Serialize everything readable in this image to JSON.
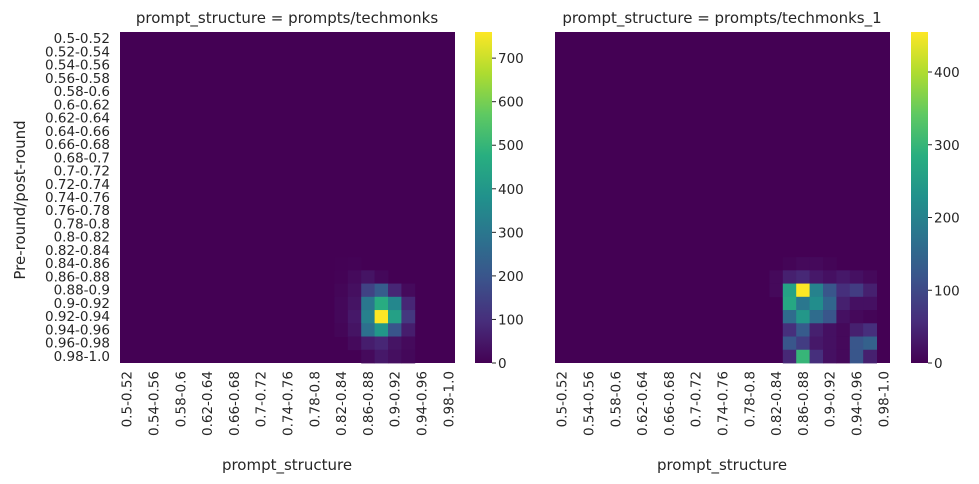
{
  "chart_data": [
    {
      "type": "heatmap",
      "title": "prompt_structure = prompts/techmonks",
      "xlabel": "prompt_structure",
      "ylabel": "Pre-round/post-round",
      "row_labels": [
        "0.5-0.52",
        "0.52-0.54",
        "0.54-0.56",
        "0.56-0.58",
        "0.58-0.6",
        "0.6-0.62",
        "0.62-0.64",
        "0.64-0.66",
        "0.66-0.68",
        "0.68-0.7",
        "0.7-0.72",
        "0.72-0.74",
        "0.74-0.76",
        "0.76-0.78",
        "0.78-0.8",
        "0.8-0.82",
        "0.82-0.84",
        "0.84-0.86",
        "0.86-0.88",
        "0.88-0.9",
        "0.9-0.92",
        "0.92-0.94",
        "0.94-0.96",
        "0.96-0.98",
        "0.98-1.0"
      ],
      "col_labels": [
        "0.5-0.52",
        "0.54-0.56",
        "0.58-0.6",
        "0.62-0.64",
        "0.66-0.68",
        "0.7-0.72",
        "0.74-0.76",
        "0.78-0.8",
        "0.82-0.84",
        "0.86-0.88",
        "0.9-0.92",
        "0.94-0.96",
        "0.98-1.0"
      ],
      "colorbar_ticks": [
        0,
        100,
        200,
        300,
        400,
        500,
        600,
        700
      ],
      "vmin": 0,
      "vmax": 760,
      "colormap": "viridis",
      "cells": [
        [
          17,
          0,
          2
        ],
        [
          17,
          1,
          5
        ],
        [
          18,
          0,
          4
        ],
        [
          18,
          1,
          20
        ],
        [
          18,
          2,
          40
        ],
        [
          18,
          3,
          15
        ],
        [
          19,
          0,
          10
        ],
        [
          19,
          1,
          30
        ],
        [
          19,
          2,
          150
        ],
        [
          19,
          3,
          220
        ],
        [
          19,
          4,
          80
        ],
        [
          19,
          5,
          20
        ],
        [
          20,
          0,
          15
        ],
        [
          20,
          1,
          40
        ],
        [
          20,
          2,
          300
        ],
        [
          20,
          3,
          470
        ],
        [
          20,
          4,
          350
        ],
        [
          20,
          5,
          80
        ],
        [
          21,
          0,
          15
        ],
        [
          21,
          1,
          50
        ],
        [
          21,
          2,
          330
        ],
        [
          21,
          3,
          760
        ],
        [
          21,
          4,
          430
        ],
        [
          21,
          5,
          120
        ],
        [
          22,
          0,
          10
        ],
        [
          22,
          1,
          40
        ],
        [
          22,
          2,
          280
        ],
        [
          22,
          3,
          400
        ],
        [
          22,
          4,
          200
        ],
        [
          22,
          5,
          60
        ],
        [
          23,
          1,
          20
        ],
        [
          23,
          2,
          60
        ],
        [
          23,
          3,
          80
        ],
        [
          23,
          4,
          40
        ],
        [
          23,
          5,
          20
        ],
        [
          24,
          2,
          20
        ],
        [
          24,
          3,
          50
        ],
        [
          24,
          4,
          30
        ],
        [
          24,
          5,
          15
        ]
      ]
    },
    {
      "type": "heatmap",
      "title": "prompt_structure = prompts/techmonks_1",
      "xlabel": "prompt_structure",
      "ylabel": "",
      "row_labels": [
        "0.5-0.52",
        "0.52-0.54",
        "0.54-0.56",
        "0.56-0.58",
        "0.58-0.6",
        "0.6-0.62",
        "0.62-0.64",
        "0.64-0.66",
        "0.66-0.68",
        "0.68-0.7",
        "0.7-0.72",
        "0.72-0.74",
        "0.74-0.76",
        "0.76-0.78",
        "0.78-0.8",
        "0.8-0.82",
        "0.82-0.84",
        "0.84-0.86",
        "0.86-0.88",
        "0.88-0.9",
        "0.9-0.92",
        "0.92-0.94",
        "0.94-0.96",
        "0.96-0.98",
        "0.98-1.0"
      ],
      "col_labels": [
        "0.5-0.52",
        "0.54-0.56",
        "0.58-0.6",
        "0.62-0.64",
        "0.66-0.68",
        "0.7-0.72",
        "0.74-0.76",
        "0.78-0.8",
        "0.82-0.84",
        "0.86-0.88",
        "0.9-0.92",
        "0.94-0.96",
        "0.98-1.0"
      ],
      "colorbar_ticks": [
        0,
        100,
        200,
        300,
        400
      ],
      "vmin": 0,
      "vmax": 455,
      "colormap": "viridis",
      "cells": [
        [
          17,
          1,
          5
        ],
        [
          17,
          2,
          10
        ],
        [
          17,
          3,
          10
        ],
        [
          17,
          4,
          5
        ],
        [
          18,
          0,
          10
        ],
        [
          18,
          1,
          40
        ],
        [
          18,
          2,
          50
        ],
        [
          18,
          3,
          30
        ],
        [
          18,
          4,
          20
        ],
        [
          18,
          5,
          30
        ],
        [
          18,
          6,
          20
        ],
        [
          18,
          7,
          10
        ],
        [
          19,
          0,
          10
        ],
        [
          19,
          1,
          260
        ],
        [
          19,
          2,
          455
        ],
        [
          19,
          3,
          200
        ],
        [
          19,
          4,
          120
        ],
        [
          19,
          5,
          60
        ],
        [
          19,
          6,
          80
        ],
        [
          19,
          7,
          40
        ],
        [
          20,
          1,
          270
        ],
        [
          20,
          2,
          180
        ],
        [
          20,
          3,
          220
        ],
        [
          20,
          4,
          150
        ],
        [
          20,
          5,
          40
        ],
        [
          20,
          6,
          20
        ],
        [
          20,
          7,
          20
        ],
        [
          21,
          1,
          160
        ],
        [
          21,
          2,
          240
        ],
        [
          21,
          3,
          160
        ],
        [
          21,
          4,
          120
        ],
        [
          21,
          5,
          20
        ],
        [
          21,
          6,
          10
        ],
        [
          21,
          7,
          5
        ],
        [
          22,
          1,
          60
        ],
        [
          22,
          2,
          130
        ],
        [
          22,
          3,
          40
        ],
        [
          22,
          4,
          20
        ],
        [
          22,
          5,
          10
        ],
        [
          22,
          6,
          40
        ],
        [
          22,
          7,
          60
        ],
        [
          23,
          1,
          120
        ],
        [
          23,
          2,
          80
        ],
        [
          23,
          3,
          30
        ],
        [
          23,
          4,
          20
        ],
        [
          23,
          5,
          10
        ],
        [
          23,
          6,
          120
        ],
        [
          23,
          7,
          140
        ],
        [
          24,
          1,
          50
        ],
        [
          24,
          2,
          300
        ],
        [
          24,
          3,
          60
        ],
        [
          24,
          4,
          20
        ],
        [
          24,
          5,
          10
        ],
        [
          24,
          6,
          120
        ],
        [
          24,
          7,
          40
        ]
      ]
    }
  ]
}
